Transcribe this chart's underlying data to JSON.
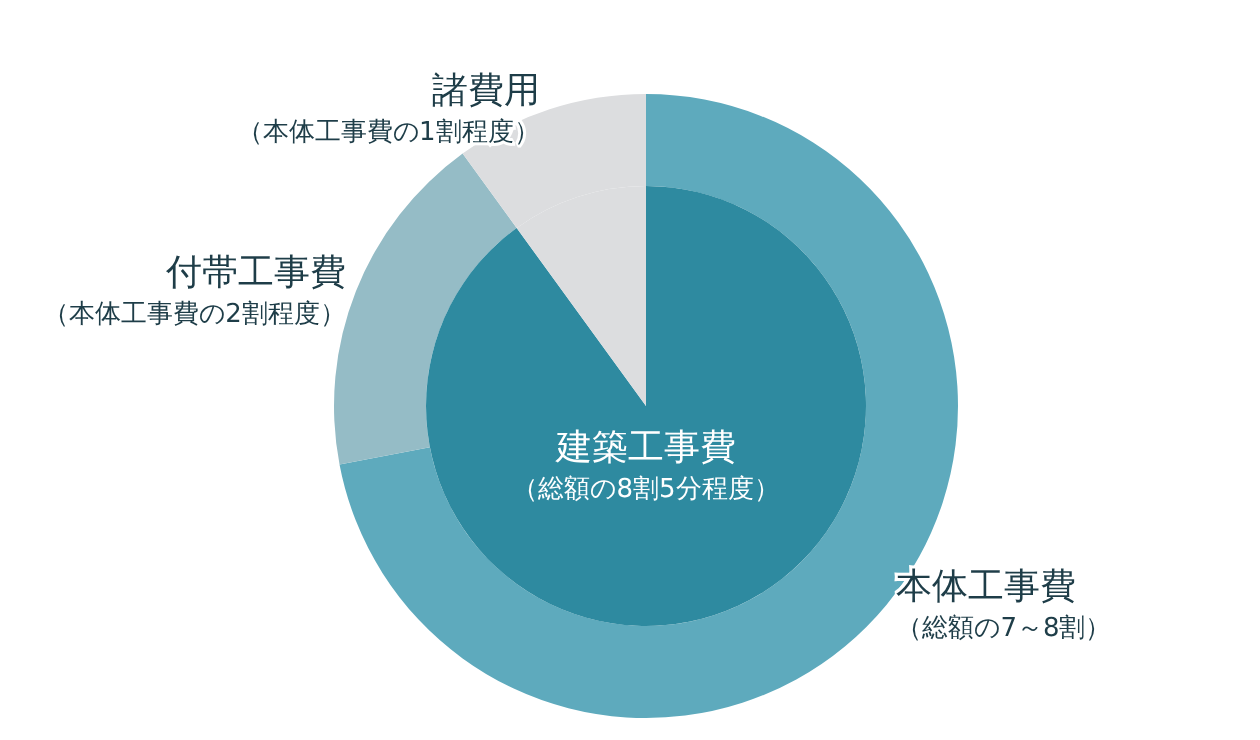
{
  "chart_data": [
    {
      "type": "pie",
      "categories": [
        "建築工事費（総額の8割5分程度）",
        null
      ],
      "values": [
        90,
        10
      ],
      "colors": [
        "#2e8aa0",
        "#dcdddf"
      ]
    },
    {
      "type": "donut",
      "categories": [
        "本体工事費（総額の7～8割）",
        "付帯工事費（本体工事費の2割程度）",
        "諸費用（本体工事費の1割程度）"
      ],
      "values": [
        72,
        18,
        10
      ],
      "colors": [
        "#5eaabd",
        "#95bcc6",
        "#dcdddf"
      ]
    }
  ]
}
